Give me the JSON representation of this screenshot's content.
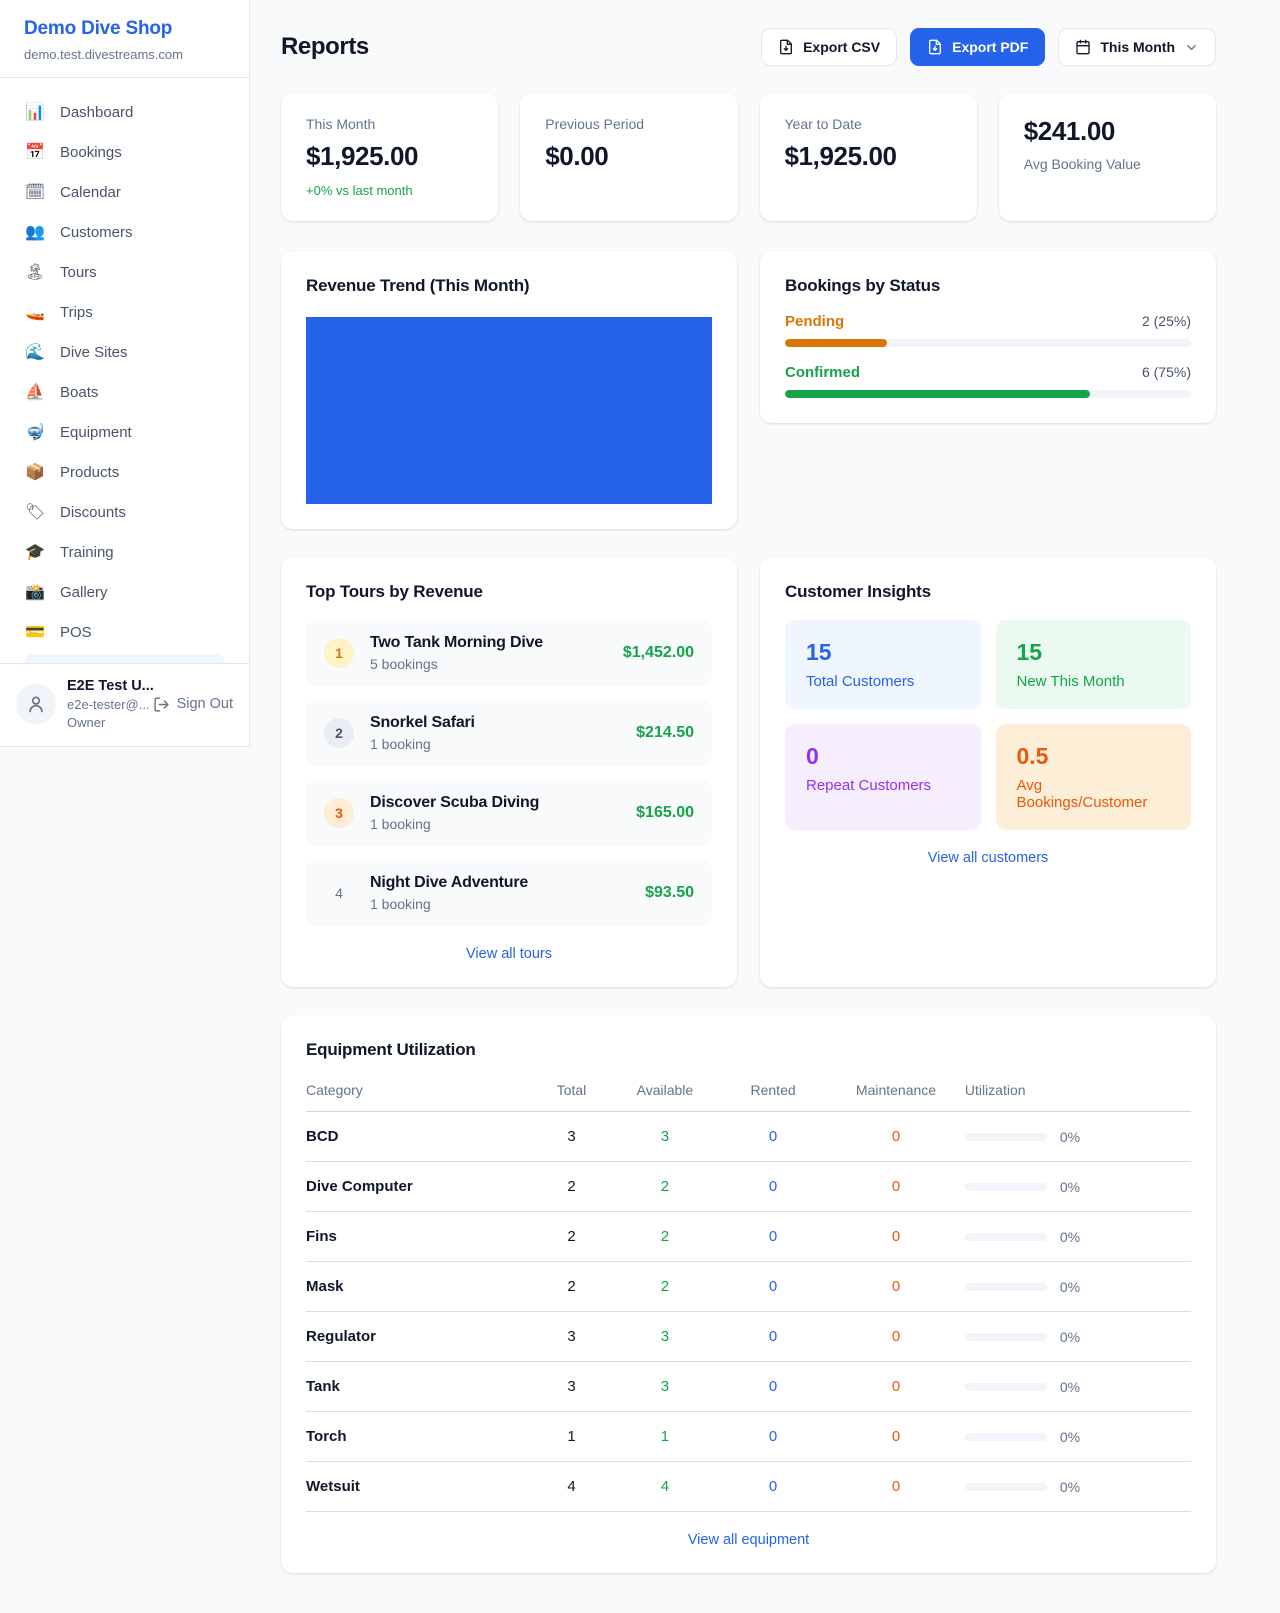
{
  "sidebar": {
    "brand": {
      "name": "Demo Dive Shop",
      "domain": "demo.test.divestreams.com"
    },
    "nav": [
      {
        "icon": "📊",
        "label": "Dashboard"
      },
      {
        "icon": "📅",
        "label": "Bookings"
      },
      {
        "icon": "🗓",
        "label": "Calendar"
      },
      {
        "icon": "👥",
        "label": "Customers"
      },
      {
        "icon": "🏝",
        "label": "Tours"
      },
      {
        "icon": "🚤",
        "label": "Trips"
      },
      {
        "icon": "🌊",
        "label": "Dive Sites"
      },
      {
        "icon": "⛵",
        "label": "Boats"
      },
      {
        "icon": "🤿",
        "label": "Equipment"
      },
      {
        "icon": "📦",
        "label": "Products"
      },
      {
        "icon": "🏷",
        "label": "Discounts"
      },
      {
        "icon": "🎓",
        "label": "Training"
      },
      {
        "icon": "📸",
        "label": "Gallery"
      },
      {
        "icon": "💳",
        "label": "POS"
      }
    ],
    "user": {
      "name": "E2E Test U...",
      "email": "e2e-tester@...",
      "role": "Owner",
      "sign_out_label": "Sign Out"
    }
  },
  "header": {
    "title": "Reports",
    "export_csv_label": "Export CSV",
    "export_pdf_label": "Export PDF",
    "period_label": "This Month"
  },
  "stats": {
    "this_month": {
      "label": "This Month",
      "value": "$1,925.00",
      "delta": "+0% vs last month"
    },
    "previous_period": {
      "label": "Previous Period",
      "value": "$0.00"
    },
    "year_to_date": {
      "label": "Year to Date",
      "value": "$1,925.00"
    },
    "avg_booking": {
      "value": "$241.00",
      "label": "Avg Booking Value"
    }
  },
  "revenue_trend": {
    "title": "Revenue Trend (This Month)",
    "chart": {
      "type": "bar",
      "color": "#2563eb",
      "note": "single solid bar filling the entire plot area, no axes or labels visible"
    }
  },
  "bookings_by_status": {
    "title": "Bookings by Status",
    "rows": [
      {
        "label": "Pending",
        "count": "2 (25%)",
        "width": "25%",
        "color": "#d97706"
      },
      {
        "label": "Confirmed",
        "count": "6 (75%)",
        "width": "75%",
        "color": "#16a34a"
      }
    ]
  },
  "top_tours": {
    "title": "Top Tours by Revenue",
    "items": [
      {
        "rank": "1",
        "name": "Two Tank Morning Dive",
        "bookings": "5 bookings",
        "revenue": "$1,452.00"
      },
      {
        "rank": "2",
        "name": "Snorkel Safari",
        "bookings": "1 booking",
        "revenue": "$214.50"
      },
      {
        "rank": "3",
        "name": "Discover Scuba Diving",
        "bookings": "1 booking",
        "revenue": "$165.00"
      },
      {
        "rank": "4",
        "name": "Night Dive Adventure",
        "bookings": "1 booking",
        "revenue": "$93.50"
      }
    ],
    "view_all_label": "View all tours"
  },
  "customer_insights": {
    "title": "Customer Insights",
    "tiles": [
      {
        "value": "15",
        "label": "Total Customers",
        "color": "#2563eb"
      },
      {
        "value": "15",
        "label": "New This Month",
        "color": "#16a34a"
      },
      {
        "value": "0",
        "label": "Repeat Customers",
        "color": "#9333ea"
      },
      {
        "value": "0.5",
        "label": "Avg Bookings/Customer",
        "color": "#ea580c"
      }
    ],
    "view_all_label": "View all customers"
  },
  "equipment": {
    "title": "Equipment Utilization",
    "columns": [
      "Category",
      "Total",
      "Available",
      "Rented",
      "Maintenance",
      "Utilization"
    ],
    "rows": [
      {
        "category": "BCD",
        "total": "3",
        "available": "3",
        "rented": "0",
        "maintenance": "0",
        "utilization": "0%",
        "bar_width": "0%"
      },
      {
        "category": "Dive Computer",
        "total": "2",
        "available": "2",
        "rented": "0",
        "maintenance": "0",
        "utilization": "0%",
        "bar_width": "0%"
      },
      {
        "category": "Fins",
        "total": "2",
        "available": "2",
        "rented": "0",
        "maintenance": "0",
        "utilization": "0%",
        "bar_width": "0%"
      },
      {
        "category": "Mask",
        "total": "2",
        "available": "2",
        "rented": "0",
        "maintenance": "0",
        "utilization": "0%",
        "bar_width": "0%"
      },
      {
        "category": "Regulator",
        "total": "3",
        "available": "3",
        "rented": "0",
        "maintenance": "0",
        "utilization": "0%",
        "bar_width": "0%"
      },
      {
        "category": "Tank",
        "total": "3",
        "available": "3",
        "rented": "0",
        "maintenance": "0",
        "utilization": "0%",
        "bar_width": "0%"
      },
      {
        "category": "Torch",
        "total": "1",
        "available": "1",
        "rented": "0",
        "maintenance": "0",
        "utilization": "0%",
        "bar_width": "0%"
      },
      {
        "category": "Wetsuit",
        "total": "4",
        "available": "4",
        "rented": "0",
        "maintenance": "0",
        "utilization": "0%",
        "bar_width": "0%"
      }
    ],
    "view_all_label": "View all equipment"
  },
  "colors": {
    "accent": "#2563eb",
    "positive": "#16a34a",
    "pending": "#d97706",
    "maintenance": "#ea580c"
  }
}
